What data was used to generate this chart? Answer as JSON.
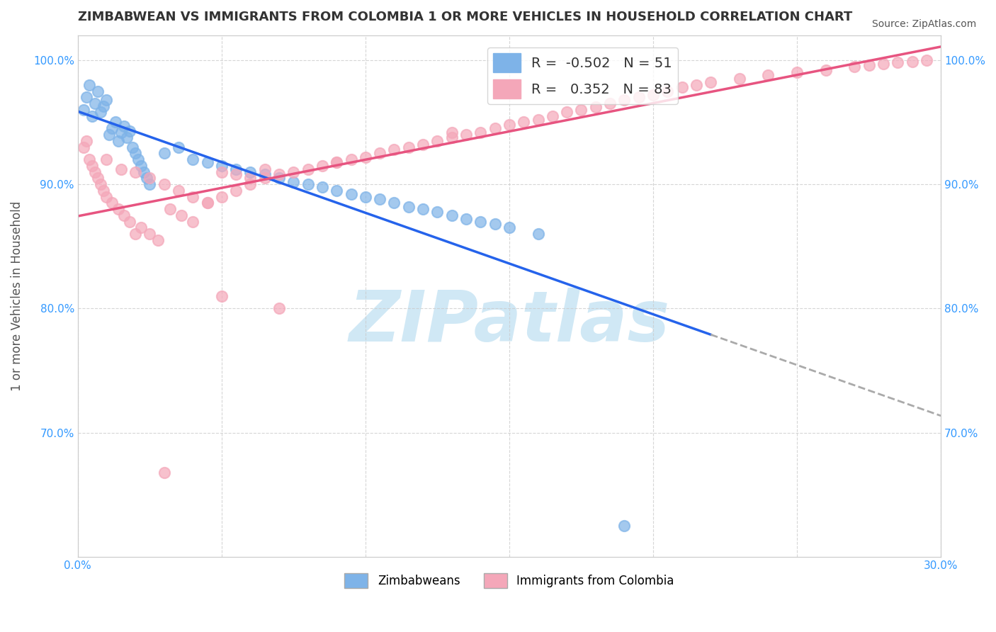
{
  "title": "ZIMBABWEAN VS IMMIGRANTS FROM COLOMBIA 1 OR MORE VEHICLES IN HOUSEHOLD CORRELATION CHART",
  "source_text": "Source: ZipAtlas.com",
  "ylabel": "1 or more Vehicles in Household",
  "xlabel": "",
  "xlim": [
    0.0,
    0.3
  ],
  "ylim": [
    0.6,
    1.02
  ],
  "xticks": [
    0.0,
    0.05,
    0.1,
    0.15,
    0.2,
    0.25,
    0.3
  ],
  "xticklabels": [
    "0.0%",
    "",
    "",
    "",
    "",
    "",
    "30.0%"
  ],
  "yticks": [
    0.7,
    0.8,
    0.9,
    1.0
  ],
  "yticklabels": [
    "70.0%",
    "80.0%",
    "90.0%",
    "100.0%"
  ],
  "blue_color": "#7EB3E8",
  "pink_color": "#F4A7B9",
  "blue_line_color": "#2563EB",
  "pink_line_color": "#E75480",
  "blue_R": -0.502,
  "blue_N": 51,
  "pink_R": 0.352,
  "pink_N": 83,
  "watermark": "ZIPatlas",
  "watermark_color": "#D0E8F5",
  "legend_label_blue": "Zimbabweans",
  "legend_label_pink": "Immigrants from Colombia",
  "blue_scatter_x": [
    0.002,
    0.003,
    0.004,
    0.005,
    0.006,
    0.007,
    0.008,
    0.009,
    0.01,
    0.011,
    0.012,
    0.013,
    0.014,
    0.015,
    0.016,
    0.017,
    0.018,
    0.019,
    0.02,
    0.021,
    0.022,
    0.023,
    0.024,
    0.025,
    0.03,
    0.035,
    0.04,
    0.045,
    0.05,
    0.055,
    0.06,
    0.065,
    0.07,
    0.075,
    0.08,
    0.085,
    0.09,
    0.095,
    0.1,
    0.105,
    0.11,
    0.115,
    0.12,
    0.125,
    0.13,
    0.135,
    0.14,
    0.145,
    0.15,
    0.16,
    0.19
  ],
  "blue_scatter_y": [
    0.96,
    0.97,
    0.98,
    0.955,
    0.965,
    0.975,
    0.958,
    0.963,
    0.968,
    0.94,
    0.945,
    0.95,
    0.935,
    0.942,
    0.947,
    0.938,
    0.943,
    0.93,
    0.925,
    0.92,
    0.915,
    0.91,
    0.905,
    0.9,
    0.925,
    0.93,
    0.92,
    0.918,
    0.915,
    0.912,
    0.91,
    0.908,
    0.905,
    0.902,
    0.9,
    0.898,
    0.895,
    0.892,
    0.89,
    0.888,
    0.885,
    0.882,
    0.88,
    0.878,
    0.875,
    0.872,
    0.87,
    0.868,
    0.865,
    0.86,
    0.625
  ],
  "pink_scatter_x": [
    0.002,
    0.003,
    0.004,
    0.005,
    0.006,
    0.007,
    0.008,
    0.009,
    0.01,
    0.012,
    0.014,
    0.016,
    0.018,
    0.02,
    0.022,
    0.025,
    0.028,
    0.032,
    0.036,
    0.04,
    0.045,
    0.05,
    0.055,
    0.06,
    0.065,
    0.07,
    0.075,
    0.08,
    0.085,
    0.09,
    0.095,
    0.1,
    0.105,
    0.11,
    0.115,
    0.12,
    0.125,
    0.13,
    0.135,
    0.14,
    0.145,
    0.15,
    0.155,
    0.16,
    0.165,
    0.17,
    0.175,
    0.18,
    0.185,
    0.19,
    0.195,
    0.2,
    0.205,
    0.21,
    0.215,
    0.22,
    0.23,
    0.24,
    0.25,
    0.26,
    0.27,
    0.275,
    0.28,
    0.285,
    0.29,
    0.295,
    0.01,
    0.015,
    0.02,
    0.025,
    0.03,
    0.035,
    0.04,
    0.045,
    0.05,
    0.055,
    0.06,
    0.065,
    0.09,
    0.13,
    0.03,
    0.05,
    0.07
  ],
  "pink_scatter_y": [
    0.93,
    0.935,
    0.92,
    0.915,
    0.91,
    0.905,
    0.9,
    0.895,
    0.89,
    0.885,
    0.88,
    0.875,
    0.87,
    0.86,
    0.865,
    0.86,
    0.855,
    0.88,
    0.875,
    0.87,
    0.885,
    0.89,
    0.895,
    0.9,
    0.905,
    0.908,
    0.91,
    0.912,
    0.915,
    0.918,
    0.92,
    0.922,
    0.925,
    0.928,
    0.93,
    0.932,
    0.935,
    0.938,
    0.94,
    0.942,
    0.945,
    0.948,
    0.95,
    0.952,
    0.955,
    0.958,
    0.96,
    0.962,
    0.965,
    0.968,
    0.97,
    0.972,
    0.975,
    0.978,
    0.98,
    0.982,
    0.985,
    0.988,
    0.99,
    0.992,
    0.995,
    0.996,
    0.997,
    0.998,
    0.999,
    1.0,
    0.92,
    0.912,
    0.91,
    0.905,
    0.9,
    0.895,
    0.89,
    0.885,
    0.91,
    0.908,
    0.905,
    0.912,
    0.918,
    0.942,
    0.668,
    0.81,
    0.8
  ]
}
